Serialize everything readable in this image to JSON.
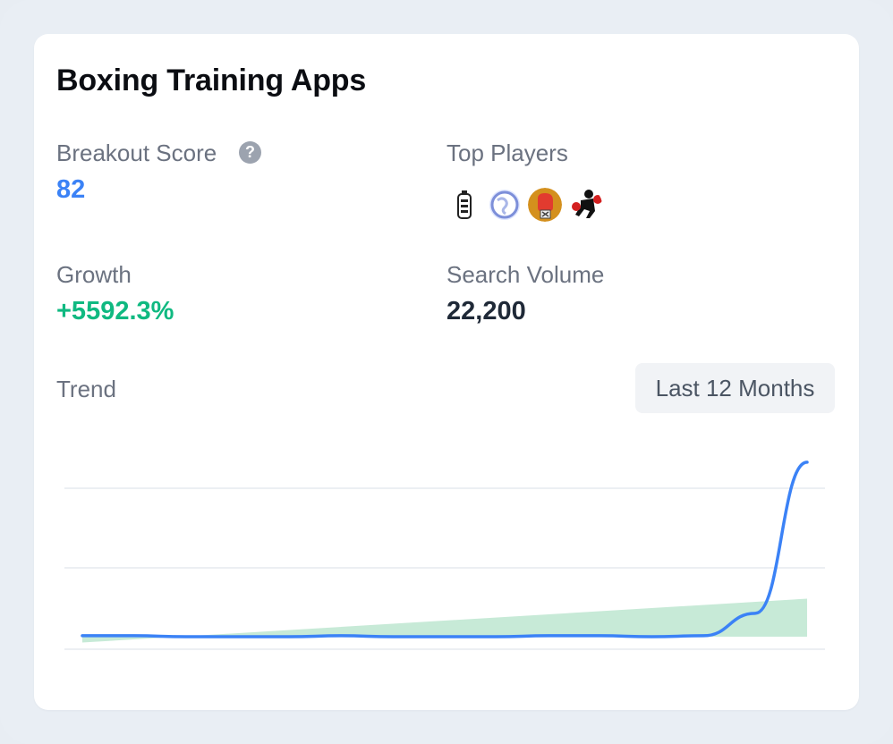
{
  "card": {
    "title": "Boxing Training Apps",
    "breakout_label": "Breakout Score",
    "breakout_value": "82",
    "help_glyph": "?",
    "top_players_label": "Top Players",
    "top_players_icons": [
      "punching-bag-icon",
      "globe-icon",
      "boxing-glove-icon",
      "boxer-icon"
    ],
    "growth_label": "Growth",
    "growth_value": "+5592.3%",
    "search_volume_label": "Search Volume",
    "search_volume_value": "22,200",
    "trend_label": "Trend",
    "range_label": "Last 12 Months"
  },
  "colors": {
    "accent_blue": "#3b82f6",
    "growth_green": "#10b981",
    "volume_dark": "#1f2937",
    "trend_fill": "#c7ead7"
  },
  "chart_data": {
    "type": "line",
    "title": "",
    "xlabel": "",
    "ylabel": "",
    "grid": true,
    "series": [
      {
        "values": [
          1.2,
          1.2,
          1.1,
          1.1,
          1.1,
          1.2,
          1.1,
          1.1,
          1.1,
          1.2,
          1.2,
          1.1,
          1.2,
          3.5,
          19.0
        ]
      }
    ],
    "trendline": {
      "start": 0.5,
      "end": 5.0
    },
    "ylim": [
      0,
      20
    ]
  }
}
